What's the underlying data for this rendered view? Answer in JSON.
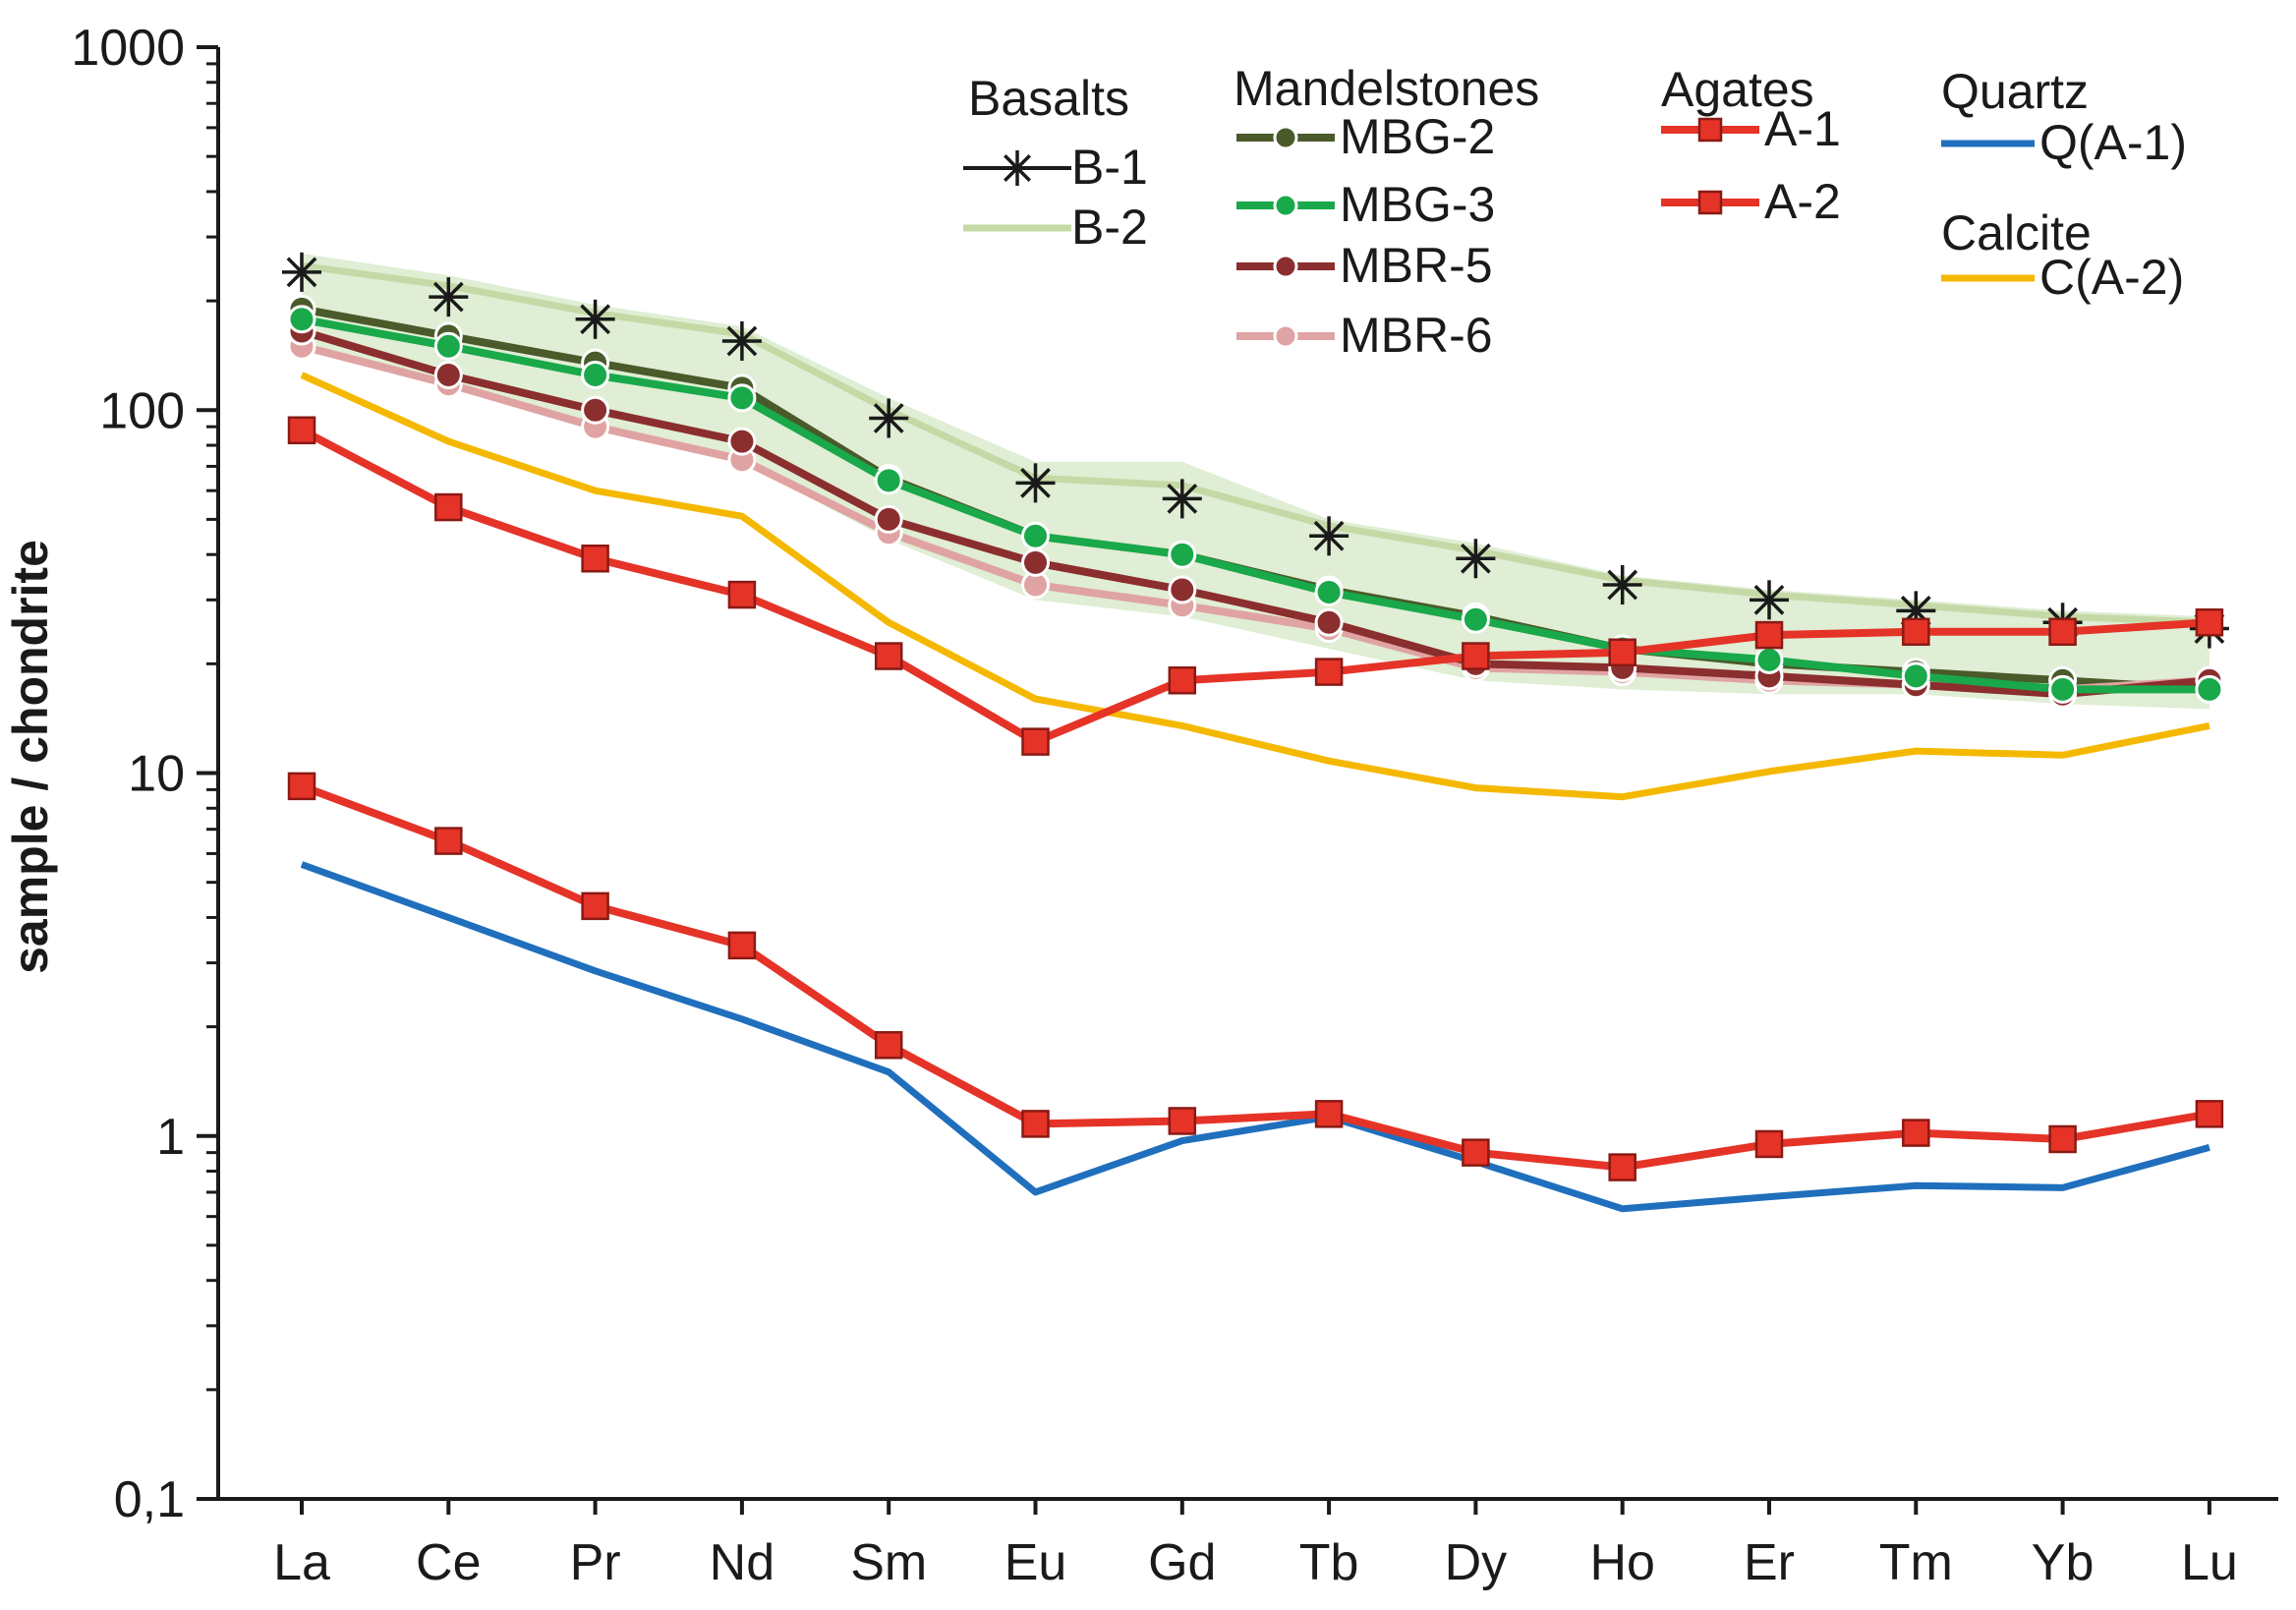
{
  "chart_data": {
    "type": "line",
    "yscale": "log",
    "ylim": [
      0.1,
      1000
    ],
    "ylabel": "sample / chondrite",
    "xlabel": "",
    "yticks": [
      {
        "value": 1000,
        "label": "1000"
      },
      {
        "value": 100,
        "label": "100"
      },
      {
        "value": 10,
        "label": "10"
      },
      {
        "value": 1,
        "label": "1"
      },
      {
        "value": 0.1,
        "label": "0,1"
      }
    ],
    "categories": [
      "La",
      "Ce",
      "Pr",
      "Nd",
      "Sm",
      "Eu",
      "Gd",
      "Tb",
      "Dy",
      "Ho",
      "Er",
      "Tm",
      "Yb",
      "Lu"
    ],
    "basalt_band": {
      "upper": [
        270,
        235,
        195,
        170,
        108,
        72,
        72,
        50,
        43,
        35,
        32,
        30,
        28,
        27
      ],
      "lower": [
        150,
        118,
        88,
        72,
        44,
        30,
        27,
        22,
        18,
        17,
        16.5,
        16.5,
        15.5,
        15
      ]
    },
    "series": [
      {
        "id": "b2",
        "name": "B-2",
        "group": "Basalts",
        "color": "#c5d9a6",
        "marker": "none",
        "width": 7,
        "values": [
          250,
          220,
          185,
          162,
          100,
          65,
          62,
          48,
          41,
          34,
          31,
          29,
          27,
          26
        ]
      },
      {
        "id": "b1",
        "name": "B-1",
        "group": "Basalts",
        "color": "#1a1a1a",
        "marker": "star",
        "width": 0,
        "values": [
          240,
          205,
          178,
          155,
          95,
          63,
          57,
          45,
          39,
          33,
          30,
          28,
          26,
          25
        ]
      },
      {
        "id": "mbg2",
        "name": "MBG-2",
        "group": "Mandelstones",
        "color": "#4a5a2a",
        "marker": "circle",
        "width": 8,
        "values": [
          190,
          160,
          135,
          115,
          65,
          45,
          40,
          32,
          27,
          22,
          20,
          19,
          18,
          17
        ]
      },
      {
        "id": "mbr6",
        "name": "MBR-6",
        "group": "Mandelstones",
        "color": "#e0a3a3",
        "marker": "circle",
        "width": 8,
        "values": [
          150,
          118,
          90,
          73,
          46,
          33,
          29,
          25,
          19.5,
          19,
          18,
          17.5,
          17,
          18
        ]
      },
      {
        "id": "mbr5",
        "name": "MBR-5",
        "group": "Mandelstones",
        "color": "#8b2e2e",
        "marker": "circle",
        "width": 8,
        "values": [
          165,
          125,
          100,
          82,
          50,
          38,
          32,
          26,
          20,
          19.5,
          18.5,
          17.5,
          16.5,
          18
        ]
      },
      {
        "id": "mbg3",
        "name": "MBG-3",
        "group": "Mandelstones",
        "color": "#19a84a",
        "marker": "circle",
        "width": 8,
        "values": [
          178,
          150,
          125,
          108,
          64,
          45,
          40,
          31.5,
          26.5,
          22,
          20.5,
          18.5,
          17,
          17
        ]
      },
      {
        "id": "c",
        "name": "C(A-2)",
        "group": "Calcite",
        "color": "#f5b800",
        "marker": "none",
        "width": 7,
        "values": [
          125,
          82,
          60,
          51,
          26,
          16,
          13.5,
          10.8,
          9.1,
          8.6,
          10.1,
          11.5,
          11.2,
          13.5
        ]
      },
      {
        "id": "q",
        "name": "Q(A-1)",
        "group": "Quartz",
        "color": "#1f6fbd",
        "marker": "none",
        "width": 7,
        "values": [
          5.6,
          4,
          2.85,
          2.1,
          1.5,
          0.7,
          0.97,
          1.13,
          0.85,
          0.63,
          0.68,
          0.73,
          0.72,
          0.93
        ]
      },
      {
        "id": "a1",
        "name": "A-1",
        "group": "Agates",
        "color": "#e53328",
        "marker": "square",
        "width": 8,
        "values": [
          9.2,
          6.5,
          4.3,
          3.35,
          1.78,
          1.08,
          1.1,
          1.15,
          0.9,
          0.82,
          0.95,
          1.02,
          0.98,
          1.15
        ]
      },
      {
        "id": "a2",
        "name": "A-2",
        "group": "Agates",
        "color": "#e53328",
        "marker": "square",
        "width": 8,
        "values": [
          88,
          54,
          39,
          31,
          21,
          12.2,
          18,
          19,
          21,
          21.5,
          24,
          24.5,
          24.5,
          26
        ]
      }
    ],
    "legend": {
      "placement": "top",
      "groups": [
        {
          "title": "Basalts",
          "items": [
            "b1",
            "b2"
          ]
        },
        {
          "title": "Mandelstones",
          "items": [
            "mbg2",
            "mbg3",
            "mbr5",
            "mbr6"
          ]
        },
        {
          "title": "Agates",
          "items": [
            "a1",
            "a2"
          ]
        },
        {
          "title": "Quartz",
          "items": [
            "q"
          ]
        },
        {
          "title": "Calcite",
          "items": [
            "c"
          ]
        }
      ]
    }
  }
}
